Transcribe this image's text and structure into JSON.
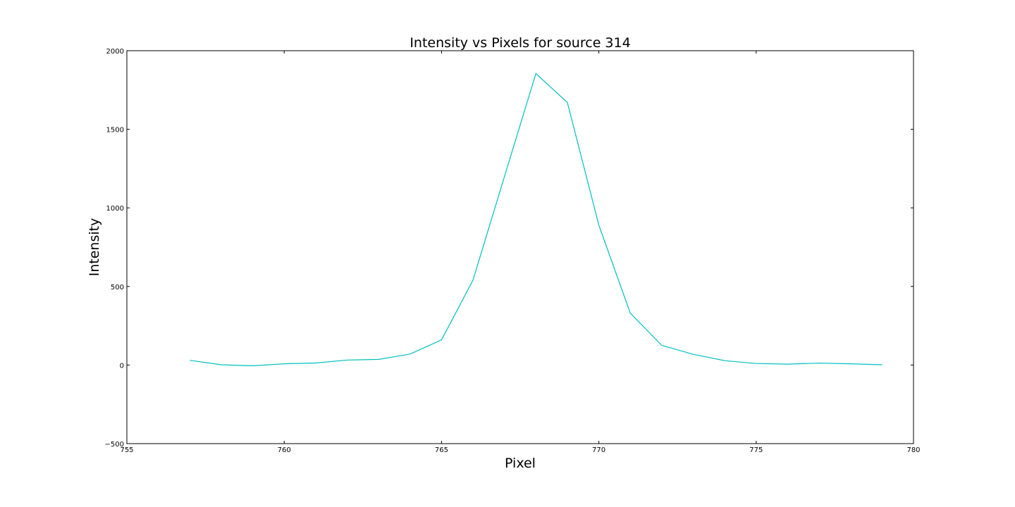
{
  "chart_data": {
    "type": "line",
    "title": "Intensity vs Pixels for source 314",
    "xlabel": "Pixel",
    "ylabel": "Intensity",
    "xlim": [
      755,
      780
    ],
    "ylim": [
      -500,
      2000
    ],
    "x_ticks": [
      755,
      760,
      765,
      770,
      775,
      780
    ],
    "y_ticks": [
      -500,
      0,
      500,
      1000,
      1500,
      2000
    ],
    "x_tick_labels": [
      "755",
      "760",
      "765",
      "770",
      "775",
      "780"
    ],
    "y_tick_labels": [
      "−500",
      "0",
      "500",
      "1000",
      "1500",
      "2000"
    ],
    "grid": false,
    "series": [
      {
        "color": "#00bfbf",
        "x": [
          757,
          758,
          759,
          760,
          761,
          762,
          763,
          764,
          765,
          766,
          767,
          768,
          769,
          770,
          771,
          772,
          773,
          774,
          775,
          776,
          777,
          778,
          779
        ],
        "y": [
          30,
          2,
          -5,
          8,
          13,
          32,
          36,
          70,
          160,
          540,
          1200,
          1855,
          1670,
          890,
          330,
          125,
          68,
          28,
          10,
          6,
          12,
          8,
          2
        ]
      }
    ]
  }
}
